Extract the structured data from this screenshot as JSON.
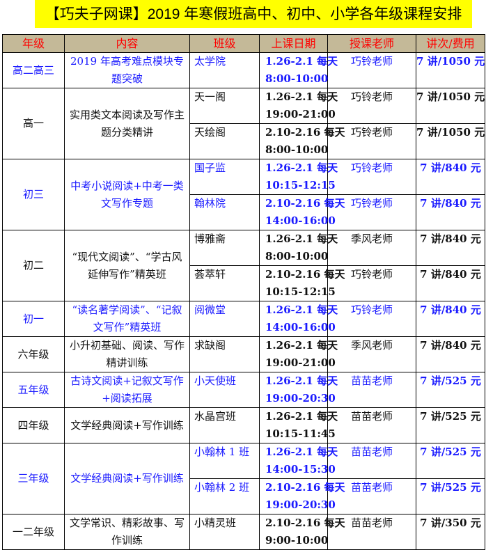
{
  "title": "【巧夫子网课】2019 年寒假班高中、初中、小学各年级课程安排",
  "colors": {
    "title_bg": "#ffff00",
    "header_bg": "#c4b998",
    "header_text": "#ff0000",
    "blue_text": "#1a1aff"
  },
  "headers": [
    "年级",
    "内容",
    "班级",
    "上课日期",
    "授课老师",
    "讲次/费用"
  ],
  "groups": [
    {
      "grade": "高二高三",
      "content": "2019 年高考难点模块专题突破",
      "blue": true,
      "sessions": [
        {
          "class": "太学院",
          "date": "1.26-2.1 每天",
          "time": "8:00-10:00",
          "teacher": "巧铃老师",
          "fee": "7 讲/1050 元"
        }
      ]
    },
    {
      "grade": "高一",
      "content": "实用类文本阅读及写作主题分类精讲",
      "blue": false,
      "sessions": [
        {
          "class": "天一阁",
          "date": "1.26-2.1 每天",
          "time": "19:00-21:00",
          "teacher": "巧铃老师",
          "fee": "7 讲/1050 元"
        },
        {
          "class": "天绘阁",
          "date": "2.10-2.16 每天",
          "time": "8:00-10:00",
          "teacher": "巧铃老师",
          "fee": "7 讲/1050 元"
        }
      ]
    },
    {
      "grade": "初三",
      "content": "中考小说阅读+中考一类文写作专题",
      "blue": true,
      "sessions": [
        {
          "class": "国子监",
          "date": "1.26-2.1 每天",
          "time": "10:15-12:15",
          "teacher": "巧铃老师",
          "fee": "7 讲/840 元"
        },
        {
          "class": "翰林院",
          "date": "2.10-2.16 每天",
          "time": "14:00-16:00",
          "teacher": "巧铃老师",
          "fee": "7 讲/840 元"
        }
      ]
    },
    {
      "grade": "初二",
      "content": "“现代文阅读”、“学古风延伸写作”精英班",
      "blue": false,
      "sessions": [
        {
          "class": "博雅斋",
          "date": "1.26-2.1 每天",
          "time": "8:00-10:00",
          "teacher": "季风老师",
          "fee": "7 讲/840 元"
        },
        {
          "class": "荟萃轩",
          "date": "2.10-2.16 每天",
          "time": "10:15-12:15",
          "teacher": "巧铃老师",
          "fee": "7 讲/840 元"
        }
      ]
    },
    {
      "grade": "初一",
      "content": "“读名著学阅读”、“记叙文写作”精英班",
      "blue": true,
      "sessions": [
        {
          "class": "阅微堂",
          "date": "1.26-2.1 每天",
          "time": "14:00-16:00",
          "teacher": "巧铃老师",
          "fee": "7 讲/840 元"
        }
      ]
    },
    {
      "grade": "六年级",
      "content": "小升初基础、阅读、写作精讲训练",
      "blue": false,
      "sessions": [
        {
          "class": "求缺阁",
          "date": "1.26-2.1 每天",
          "time": "19:00-21:00",
          "teacher": "季风老师",
          "fee": "7 讲/840 元"
        }
      ]
    },
    {
      "grade": "五年级",
      "content": "古诗文阅读+记叙文写作+阅读拓展",
      "blue": true,
      "sessions": [
        {
          "class": "小天使班",
          "date": "1.26-2.1 每天",
          "time": "19:00-20:30",
          "teacher": "苗苗老师",
          "fee": "7 讲/525 元"
        }
      ]
    },
    {
      "grade": "四年级",
      "content": "文学经典阅读+写作训练",
      "blue": false,
      "sessions": [
        {
          "class": "水晶宫班",
          "date": "1.26-2.1 每天",
          "time": "10:15-11:45",
          "teacher": "苗苗老师",
          "fee": "7 讲/525 元"
        }
      ]
    },
    {
      "grade": "三年级",
      "content": "文学经典阅读+写作训练",
      "blue": true,
      "sessions": [
        {
          "class": "小翰林 1 班",
          "date": "1.26-2.1 每天",
          "time": "14:00-15:30",
          "teacher": "苗苗老师",
          "fee": "7 讲/525 元"
        },
        {
          "class": "小翰林 2 班",
          "date": "2.10-2.16 每天",
          "time": "19:00-20:30",
          "teacher": "苗苗老师",
          "fee": "7 讲/525 元"
        }
      ]
    },
    {
      "grade": "一二年级",
      "content": "文学常识、精彩故事、写作训练",
      "blue": false,
      "sessions": [
        {
          "class": "小精灵班",
          "date": "2.10-2.16 每天",
          "time": "9:00-10:00",
          "teacher": "苗苗老师",
          "fee": "7 讲/350 元"
        }
      ]
    }
  ]
}
